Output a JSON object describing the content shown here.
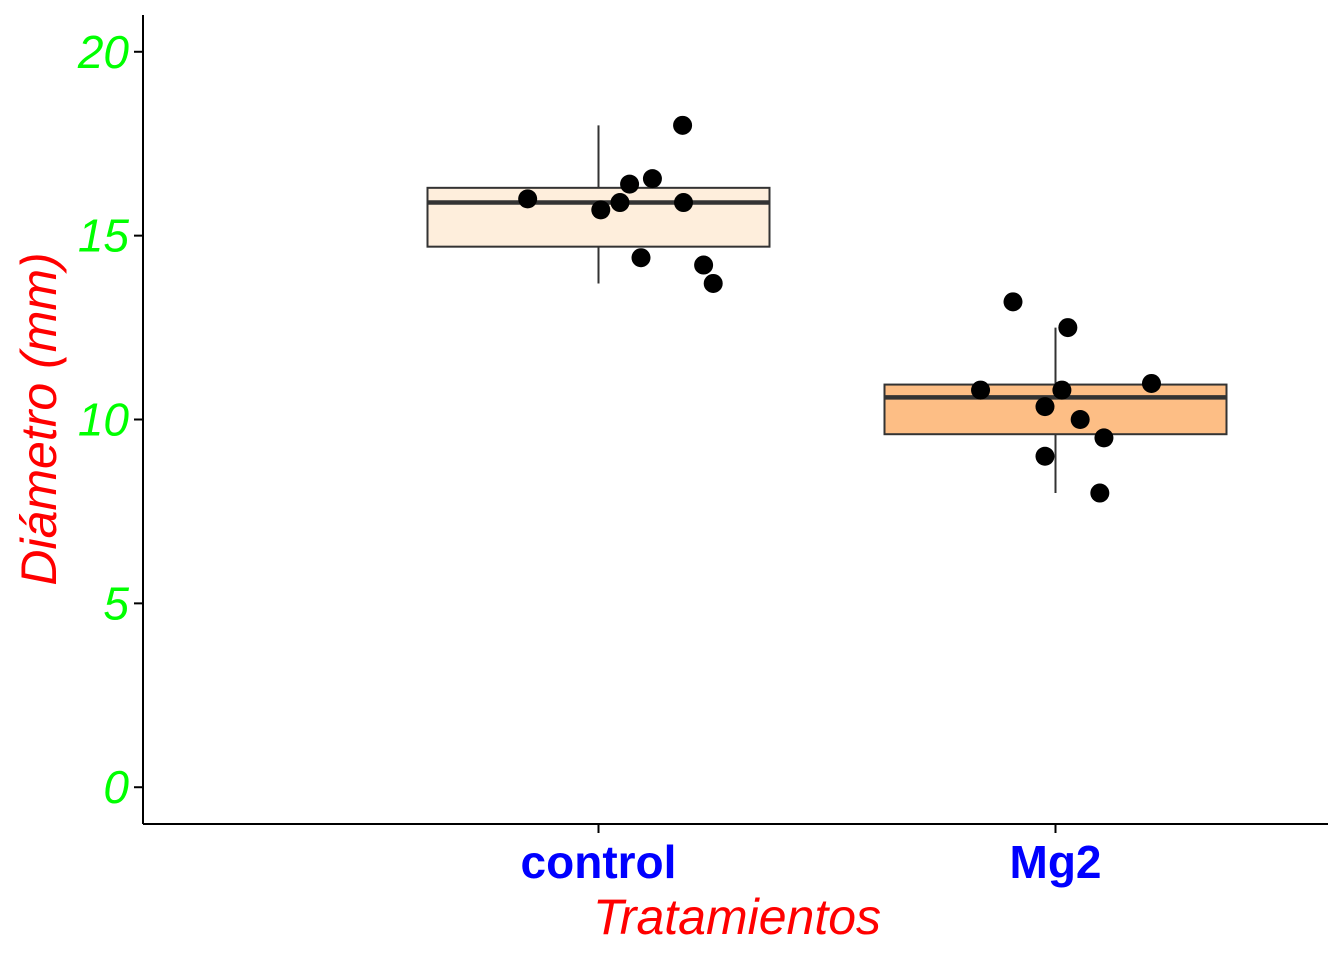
{
  "chart_data": {
    "type": "boxplot",
    "xlabel": "Tratamientos",
    "ylabel": "Diámetro (mm)",
    "ylim": [
      -1,
      21
    ],
    "yticks": [
      0,
      5,
      10,
      15,
      20
    ],
    "categories": [
      "control",
      "Mg2"
    ],
    "grid": false,
    "legend": "none",
    "colors": {
      "xlabel": "#ff0000",
      "ylabel": "#ff0000",
      "ytick_labels": "#00ff00",
      "xtick_labels": "#0000ff",
      "points": "#000000",
      "box_outline": "#333333"
    },
    "boxes": [
      {
        "category": "control",
        "fill": "#feeedc",
        "whisker_low": 13.7,
        "q1": 14.7,
        "median": 15.9,
        "q3": 16.3,
        "whisker_high": 18.0
      },
      {
        "category": "Mg2",
        "fill": "#fdbe85",
        "whisker_low": 8.0,
        "q1": 9.6,
        "median": 10.6,
        "q3": 10.95,
        "whisker_high": 12.5
      }
    ],
    "points": [
      {
        "category": "control",
        "jitter": -0.155,
        "y": 16.0
      },
      {
        "category": "control",
        "jitter": 0.005,
        "y": 15.7
      },
      {
        "category": "control",
        "jitter": 0.047,
        "y": 15.9
      },
      {
        "category": "control",
        "jitter": 0.068,
        "y": 16.4
      },
      {
        "category": "control",
        "jitter": 0.118,
        "y": 16.55
      },
      {
        "category": "control",
        "jitter": 0.093,
        "y": 14.4
      },
      {
        "category": "control",
        "jitter": 0.186,
        "y": 15.9
      },
      {
        "category": "control",
        "jitter": 0.184,
        "y": 18.0
      },
      {
        "category": "control",
        "jitter": 0.23,
        "y": 14.2
      },
      {
        "category": "control",
        "jitter": 0.251,
        "y": 13.7
      },
      {
        "category": "Mg2",
        "jitter": -0.093,
        "y": 13.2
      },
      {
        "category": "Mg2",
        "jitter": 0.027,
        "y": 12.5
      },
      {
        "category": "Mg2",
        "jitter": -0.164,
        "y": 10.8
      },
      {
        "category": "Mg2",
        "jitter": 0.014,
        "y": 10.8
      },
      {
        "category": "Mg2",
        "jitter": -0.023,
        "y": 10.35
      },
      {
        "category": "Mg2",
        "jitter": 0.054,
        "y": 10.0
      },
      {
        "category": "Mg2",
        "jitter": 0.21,
        "y": 10.98
      },
      {
        "category": "Mg2",
        "jitter": 0.106,
        "y": 9.5
      },
      {
        "category": "Mg2",
        "jitter": -0.023,
        "y": 9.0
      },
      {
        "category": "Mg2",
        "jitter": 0.097,
        "y": 8.0
      }
    ]
  }
}
